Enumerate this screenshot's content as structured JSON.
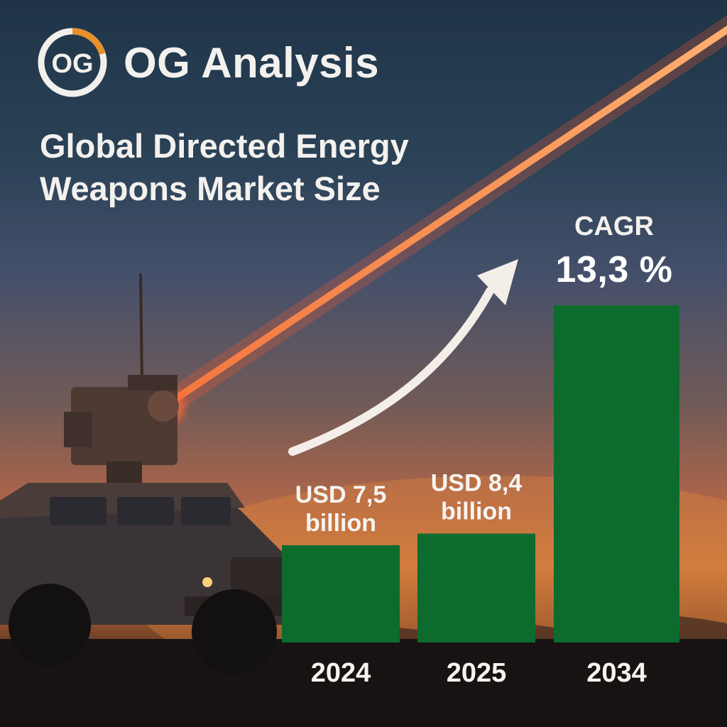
{
  "brand": {
    "logo_text": "OG",
    "name": "OG Analysis",
    "logo_ring_color": "#f2f0ec",
    "logo_accent_color": "#e8902a"
  },
  "title_lines": [
    "Global Directed Energy",
    "Weapons Market Size"
  ],
  "cagr": {
    "label": "CAGR",
    "value": "13,3 %"
  },
  "colors": {
    "bar": "#0d6b2e",
    "laser": "#ff5a2e",
    "text": "#f3f1ee"
  },
  "chart_data": {
    "type": "bar",
    "categories": [
      "2024",
      "2025",
      "2034"
    ],
    "values": [
      7.5,
      8.4,
      26.0
    ],
    "data_labels": [
      [
        "USD 7,5",
        "billion"
      ],
      [
        "USD 8,4",
        "billion"
      ],
      []
    ],
    "title": "Global Directed Energy Weapons Market Size",
    "xlabel": "",
    "ylabel": "",
    "ylim": [
      0,
      26
    ],
    "grid": false,
    "legend": "none"
  }
}
